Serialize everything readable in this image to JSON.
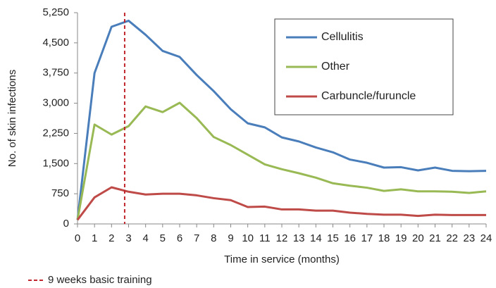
{
  "chart_data": {
    "type": "line",
    "ylabel": "No. of skin infections",
    "xlabel": "Time in service (months)",
    "x": [
      0,
      1,
      2,
      3,
      4,
      5,
      6,
      7,
      8,
      9,
      10,
      11,
      12,
      13,
      14,
      15,
      16,
      17,
      18,
      19,
      20,
      21,
      22,
      23,
      24
    ],
    "xlim": [
      0,
      24
    ],
    "xticks": [
      0,
      1,
      2,
      3,
      4,
      5,
      6,
      7,
      8,
      9,
      10,
      11,
      12,
      13,
      14,
      15,
      16,
      17,
      18,
      19,
      20,
      21,
      22,
      23,
      24
    ],
    "ylim": [
      0,
      5250
    ],
    "yticks": [
      0,
      750,
      {
        "value": 1500,
        "label": "1,500"
      },
      {
        "value": 2250,
        "label": "2,250"
      },
      {
        "value": 3000,
        "label": "3,000"
      },
      {
        "value": 3750,
        "label": "3,750"
      },
      {
        "value": 4500,
        "label": "4,500"
      },
      {
        "value": 5250,
        "label": "5,250"
      }
    ],
    "legend": "upper right",
    "series": [
      {
        "name": "Cellulitis",
        "color": "#4a7ebb",
        "values": [
          100,
          3750,
          4900,
          5050,
          4700,
          4300,
          4150,
          3700,
          3300,
          2850,
          2500,
          2400,
          2150,
          2050,
          1900,
          1780,
          1600,
          1520,
          1400,
          1410,
          1330,
          1400,
          1320,
          1310,
          1320
        ]
      },
      {
        "name": "Other",
        "color": "#98b954",
        "values": [
          100,
          2470,
          2220,
          2430,
          2920,
          2780,
          3010,
          2630,
          2160,
          1960,
          1720,
          1480,
          1360,
          1260,
          1150,
          1010,
          950,
          900,
          820,
          860,
          810,
          810,
          800,
          770,
          810
        ]
      },
      {
        "name": "Carbuncle/furuncle",
        "color": "#be4b48",
        "values": [
          100,
          660,
          910,
          800,
          730,
          750,
          750,
          710,
          640,
          590,
          420,
          430,
          360,
          360,
          330,
          330,
          280,
          250,
          230,
          230,
          200,
          230,
          220,
          220,
          220
        ]
      }
    ],
    "annotation": {
      "label": "9 weeks basic training",
      "x": 2.77,
      "color": "#c0262d"
    }
  }
}
